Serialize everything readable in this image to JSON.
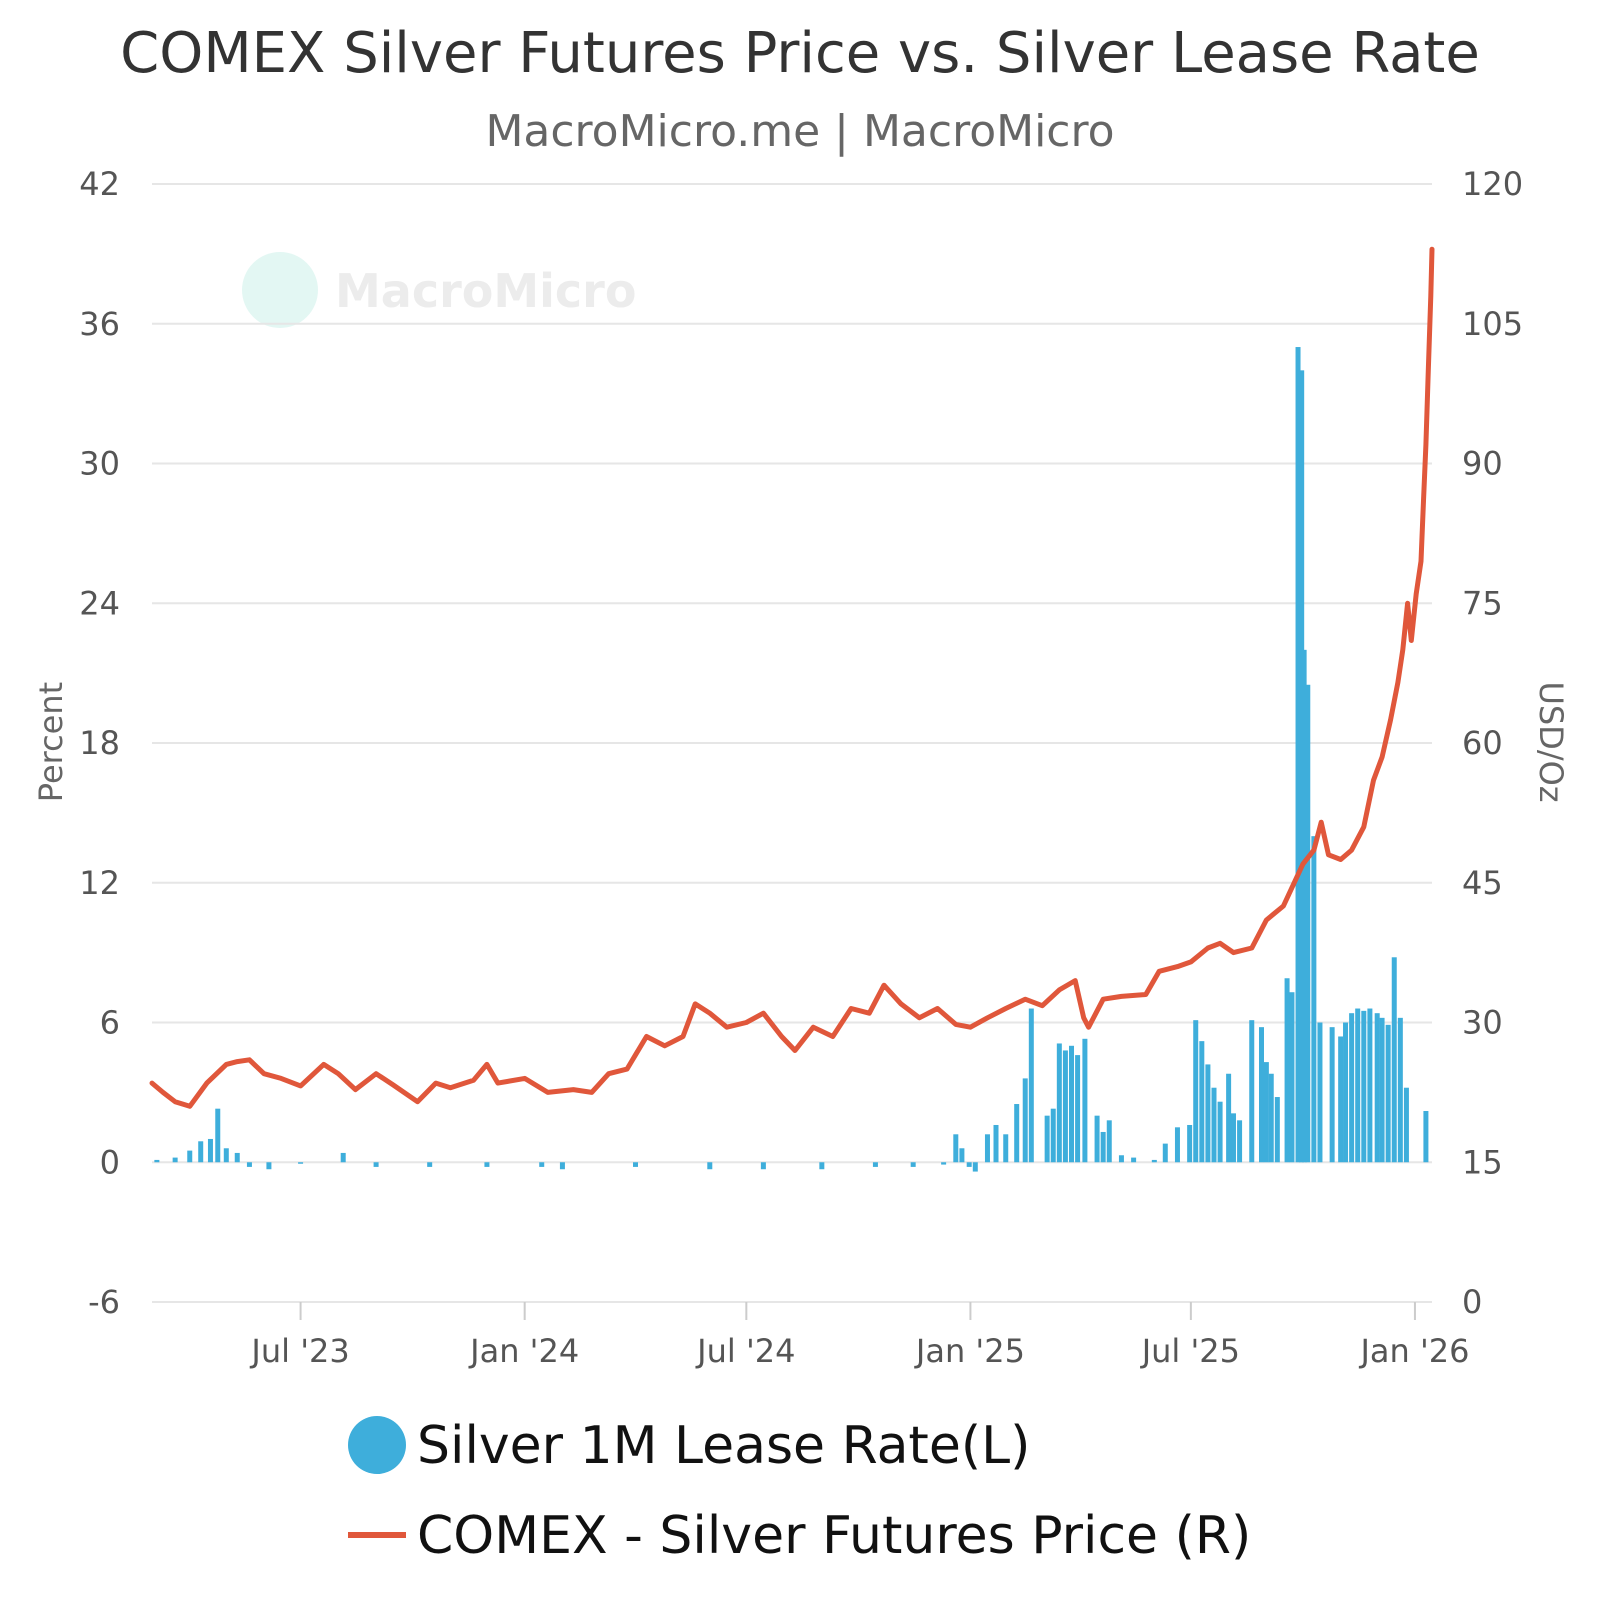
{
  "chart_data": {
    "type": "bar+line",
    "title": "COMEX Silver Futures Price vs. Silver Lease Rate",
    "subtitle": "MacroMicro.me | MacroMicro",
    "watermark": "MacroMicro",
    "left_axis": {
      "label": "Percent",
      "ylim": [
        -6,
        42
      ],
      "ticks": [
        "42",
        "36",
        "30",
        "24",
        "18",
        "12",
        "6",
        "0",
        "-6"
      ]
    },
    "right_axis": {
      "label": "USD/Oz",
      "ylim": [
        0,
        120
      ],
      "ticks": [
        "120",
        "105",
        "90",
        "75",
        "60",
        "45",
        "30",
        "15",
        "0"
      ]
    },
    "x_axis": {
      "range": [
        "2023-03-01",
        "2026-01-15"
      ],
      "tick_labels": [
        {
          "date": "2023-07-01",
          "label": "Jul '23"
        },
        {
          "date": "2024-01-01",
          "label": "Jan '24"
        },
        {
          "date": "2024-07-01",
          "label": "Jul '24"
        },
        {
          "date": "2025-01-01",
          "label": "Jan '25"
        },
        {
          "date": "2025-07-01",
          "label": "Jul '25"
        },
        {
          "date": "2026-01-01",
          "label": "Jan '26"
        }
      ]
    },
    "grid": true,
    "legend_position": "bottom",
    "series": [
      {
        "name": "Silver 1M Lease Rate(L)",
        "type": "bar",
        "axis": "left",
        "color": "#3eaedb",
        "points": [
          [
            "2023-03-05",
            0.1
          ],
          [
            "2023-03-20",
            0.2
          ],
          [
            "2023-04-01",
            0.5
          ],
          [
            "2023-04-10",
            0.9
          ],
          [
            "2023-04-18",
            1.0
          ],
          [
            "2023-04-24",
            2.3
          ],
          [
            "2023-05-01",
            0.6
          ],
          [
            "2023-05-10",
            0.4
          ],
          [
            "2023-05-20",
            -0.2
          ],
          [
            "2023-06-05",
            -0.3
          ],
          [
            "2023-07-01",
            0.0
          ],
          [
            "2023-08-05",
            0.4
          ],
          [
            "2023-09-01",
            -0.2
          ],
          [
            "2023-10-15",
            -0.2
          ],
          [
            "2023-12-01",
            -0.2
          ],
          [
            "2024-01-15",
            -0.2
          ],
          [
            "2024-02-01",
            -0.3
          ],
          [
            "2024-04-01",
            -0.2
          ],
          [
            "2024-06-01",
            -0.3
          ],
          [
            "2024-07-15",
            -0.3
          ],
          [
            "2024-09-01",
            -0.3
          ],
          [
            "2024-10-15",
            -0.2
          ],
          [
            "2024-11-15",
            -0.2
          ],
          [
            "2024-12-10",
            -0.1
          ],
          [
            "2024-12-20",
            1.2
          ],
          [
            "2024-12-25",
            0.6
          ],
          [
            "2024-12-31",
            -0.2
          ],
          [
            "2025-01-05",
            -0.4
          ],
          [
            "2025-01-15",
            1.2
          ],
          [
            "2025-01-22",
            1.6
          ],
          [
            "2025-01-30",
            1.2
          ],
          [
            "2025-02-08",
            2.5
          ],
          [
            "2025-02-15",
            3.6
          ],
          [
            "2025-02-20",
            6.6
          ],
          [
            "2025-03-05",
            2.0
          ],
          [
            "2025-03-10",
            2.3
          ],
          [
            "2025-03-15",
            5.1
          ],
          [
            "2025-03-20",
            4.8
          ],
          [
            "2025-03-25",
            5.0
          ],
          [
            "2025-03-30",
            4.6
          ],
          [
            "2025-04-05",
            5.3
          ],
          [
            "2025-04-15",
            2.0
          ],
          [
            "2025-04-20",
            1.3
          ],
          [
            "2025-04-25",
            1.8
          ],
          [
            "2025-05-05",
            0.3
          ],
          [
            "2025-05-15",
            0.2
          ],
          [
            "2025-06-01",
            0.1
          ],
          [
            "2025-06-10",
            0.8
          ],
          [
            "2025-06-20",
            1.5
          ],
          [
            "2025-06-30",
            1.6
          ],
          [
            "2025-07-05",
            6.1
          ],
          [
            "2025-07-10",
            5.2
          ],
          [
            "2025-07-15",
            4.2
          ],
          [
            "2025-07-20",
            3.2
          ],
          [
            "2025-07-25",
            2.6
          ],
          [
            "2025-08-01",
            3.8
          ],
          [
            "2025-08-05",
            2.1
          ],
          [
            "2025-08-10",
            1.8
          ],
          [
            "2025-08-20",
            6.1
          ],
          [
            "2025-08-28",
            5.8
          ],
          [
            "2025-09-01",
            4.3
          ],
          [
            "2025-09-05",
            3.8
          ],
          [
            "2025-09-10",
            2.8
          ],
          [
            "2025-09-18",
            7.9
          ],
          [
            "2025-09-22",
            7.3
          ],
          [
            "2025-09-27",
            35.0
          ],
          [
            "2025-09-30",
            34.0
          ],
          [
            "2025-10-02",
            22.0
          ],
          [
            "2025-10-05",
            20.5
          ],
          [
            "2025-10-10",
            14.0
          ],
          [
            "2025-10-15",
            6.0
          ],
          [
            "2025-10-25",
            5.8
          ],
          [
            "2025-11-01",
            5.4
          ],
          [
            "2025-11-05",
            6.0
          ],
          [
            "2025-11-10",
            6.4
          ],
          [
            "2025-11-15",
            6.6
          ],
          [
            "2025-11-20",
            6.5
          ],
          [
            "2025-11-25",
            6.6
          ],
          [
            "2025-12-01",
            6.4
          ],
          [
            "2025-12-05",
            6.2
          ],
          [
            "2025-12-10",
            5.9
          ],
          [
            "2025-12-15",
            8.8
          ],
          [
            "2025-12-20",
            6.2
          ],
          [
            "2025-12-25",
            3.2
          ],
          [
            "2026-01-10",
            2.2
          ]
        ]
      },
      {
        "name": "COMEX - Silver Futures Price (R)",
        "type": "line",
        "axis": "right",
        "color": "#e0573b",
        "points": [
          [
            "2023-03-01",
            23.5
          ],
          [
            "2023-03-10",
            22.5
          ],
          [
            "2023-03-20",
            21.5
          ],
          [
            "2023-04-01",
            21.0
          ],
          [
            "2023-04-15",
            23.5
          ],
          [
            "2023-05-01",
            25.5
          ],
          [
            "2023-05-10",
            25.8
          ],
          [
            "2023-05-20",
            26.0
          ],
          [
            "2023-06-01",
            24.5
          ],
          [
            "2023-06-15",
            24.0
          ],
          [
            "2023-07-01",
            23.2
          ],
          [
            "2023-07-20",
            25.5
          ],
          [
            "2023-08-01",
            24.5
          ],
          [
            "2023-08-15",
            22.8
          ],
          [
            "2023-09-01",
            24.5
          ],
          [
            "2023-09-15",
            23.3
          ],
          [
            "2023-10-05",
            21.5
          ],
          [
            "2023-10-20",
            23.5
          ],
          [
            "2023-11-01",
            23.0
          ],
          [
            "2023-11-20",
            23.8
          ],
          [
            "2023-12-01",
            25.5
          ],
          [
            "2023-12-10",
            23.5
          ],
          [
            "2024-01-01",
            24.0
          ],
          [
            "2024-01-20",
            22.5
          ],
          [
            "2024-02-10",
            22.8
          ],
          [
            "2024-02-25",
            22.5
          ],
          [
            "2024-03-10",
            24.5
          ],
          [
            "2024-03-25",
            25.0
          ],
          [
            "2024-04-10",
            28.5
          ],
          [
            "2024-04-25",
            27.5
          ],
          [
            "2024-05-10",
            28.5
          ],
          [
            "2024-05-20",
            32.0
          ],
          [
            "2024-06-01",
            31.0
          ],
          [
            "2024-06-15",
            29.5
          ],
          [
            "2024-07-01",
            30.0
          ],
          [
            "2024-07-15",
            31.0
          ],
          [
            "2024-07-30",
            28.5
          ],
          [
            "2024-08-10",
            27.0
          ],
          [
            "2024-08-25",
            29.5
          ],
          [
            "2024-09-10",
            28.5
          ],
          [
            "2024-09-25",
            31.5
          ],
          [
            "2024-10-10",
            31.0
          ],
          [
            "2024-10-22",
            34.0
          ],
          [
            "2024-11-05",
            32.0
          ],
          [
            "2024-11-20",
            30.5
          ],
          [
            "2024-12-05",
            31.5
          ],
          [
            "2024-12-20",
            29.8
          ],
          [
            "2025-01-01",
            29.5
          ],
          [
            "2025-01-15",
            30.5
          ],
          [
            "2025-01-30",
            31.5
          ],
          [
            "2025-02-15",
            32.5
          ],
          [
            "2025-03-01",
            31.8
          ],
          [
            "2025-03-15",
            33.5
          ],
          [
            "2025-03-28",
            34.5
          ],
          [
            "2025-04-04",
            30.5
          ],
          [
            "2025-04-08",
            29.5
          ],
          [
            "2025-04-20",
            32.5
          ],
          [
            "2025-05-05",
            32.8
          ],
          [
            "2025-05-25",
            33.0
          ],
          [
            "2025-06-05",
            35.5
          ],
          [
            "2025-06-20",
            36.0
          ],
          [
            "2025-07-01",
            36.5
          ],
          [
            "2025-07-15",
            38.0
          ],
          [
            "2025-07-25",
            38.5
          ],
          [
            "2025-08-05",
            37.5
          ],
          [
            "2025-08-20",
            38.0
          ],
          [
            "2025-09-01",
            41.0
          ],
          [
            "2025-09-15",
            42.5
          ],
          [
            "2025-10-01",
            47.0
          ],
          [
            "2025-10-10",
            48.5
          ],
          [
            "2025-10-16",
            51.5
          ],
          [
            "2025-10-22",
            48.0
          ],
          [
            "2025-11-01",
            47.5
          ],
          [
            "2025-11-10",
            48.5
          ],
          [
            "2025-11-20",
            51.0
          ],
          [
            "2025-11-28",
            56.0
          ],
          [
            "2025-12-05",
            58.5
          ],
          [
            "2025-12-12",
            62.5
          ],
          [
            "2025-12-18",
            66.5
          ],
          [
            "2025-12-22",
            70.0
          ],
          [
            "2025-12-26",
            75.0
          ],
          [
            "2025-12-29",
            71.0
          ],
          [
            "2026-01-02",
            76.0
          ],
          [
            "2026-01-06",
            79.5
          ],
          [
            "2026-01-08",
            86.0
          ],
          [
            "2026-01-10",
            92.0
          ],
          [
            "2026-01-12",
            100.0
          ],
          [
            "2026-01-14",
            108.0
          ],
          [
            "2026-01-15",
            113.0
          ]
        ]
      }
    ]
  }
}
